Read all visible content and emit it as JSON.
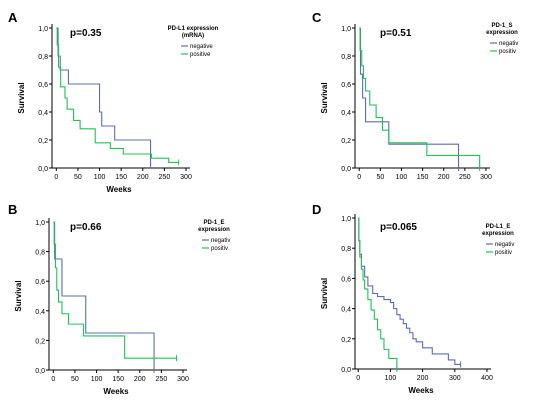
{
  "colors": {
    "negative": "#5b6fae",
    "positive": "#23c05a",
    "axis": "#000000",
    "censor": "#555555"
  },
  "chart_data": [
    {
      "type": "line",
      "panel_label": "A",
      "pvalue_text": "p=0.35",
      "legend_title": [
        "PD-L1 expression",
        "(mRNA)"
      ],
      "xlabel": "Weeks",
      "ylabel": "Survival",
      "xlim": [
        -10,
        300
      ],
      "ylim": [
        0,
        1.0
      ],
      "xticks": [
        0,
        50,
        100,
        150,
        200,
        250,
        300
      ],
      "yticks": [
        0.0,
        0.2,
        0.4,
        0.6,
        0.8,
        1.0
      ],
      "ytick_labels": [
        "0,0",
        "0,2",
        "0,4",
        "0,6",
        "0,8",
        "1,0"
      ],
      "series": [
        {
          "name": "negative",
          "color_key": "negative",
          "step": true,
          "x": [
            0,
            4,
            9,
            28,
            100,
            105,
            135,
            155,
            175,
            215,
            218
          ],
          "y": [
            1.0,
            0.8,
            0.7,
            0.6,
            0.4,
            0.3,
            0.2,
            0.2,
            0.2,
            0.2,
            0.02
          ]
        },
        {
          "name": "positive",
          "color_key": "positive",
          "step": true,
          "x": [
            0,
            2,
            5,
            10,
            20,
            25,
            40,
            55,
            90,
            125,
            155,
            220,
            260,
            283
          ],
          "y": [
            1.0,
            0.88,
            0.72,
            0.58,
            0.5,
            0.42,
            0.34,
            0.28,
            0.18,
            0.14,
            0.1,
            0.07,
            0.04,
            0.04
          ]
        }
      ]
    },
    {
      "type": "line",
      "panel_label": "C",
      "pvalue_text": "p=0.51",
      "legend_title": [
        "PD-1_S",
        "expression"
      ],
      "xlabel": "",
      "ylabel": "Survival",
      "xlim": [
        -10,
        300
      ],
      "ylim": [
        0,
        1.0
      ],
      "xticks": [
        0,
        50,
        100,
        150,
        200,
        250,
        300
      ],
      "yticks": [
        0.0,
        0.2,
        0.4,
        0.6,
        0.8,
        1.0
      ],
      "ytick_labels": [
        "0,0",
        "0,2",
        "0,4",
        "0,6",
        "0,8",
        "1,0"
      ],
      "series": [
        {
          "name": "negativ",
          "color_key": "negative",
          "step": true,
          "x": [
            0,
            3,
            8,
            15,
            70,
            235
          ],
          "y": [
            1.0,
            0.67,
            0.5,
            0.33,
            0.17,
            0.0
          ]
        },
        {
          "name": "positiv",
          "color_key": "positive",
          "step": true,
          "x": [
            0,
            2,
            6,
            10,
            15,
            25,
            40,
            55,
            70,
            160,
            285
          ],
          "y": [
            1.0,
            0.84,
            0.73,
            0.64,
            0.55,
            0.45,
            0.36,
            0.27,
            0.18,
            0.09,
            0.0
          ]
        }
      ]
    },
    {
      "type": "line",
      "panel_label": "B",
      "pvalue_text": "p=0.66",
      "legend_title": [
        "PD-1_E",
        "expression"
      ],
      "xlabel": "Weeks",
      "ylabel": "Survival",
      "xlim": [
        -10,
        300
      ],
      "ylim": [
        0,
        1.0
      ],
      "xticks": [
        0,
        50,
        100,
        150,
        200,
        250,
        300
      ],
      "yticks": [
        0.0,
        0.2,
        0.4,
        0.6,
        0.8,
        1.0
      ],
      "ytick_labels": [
        "0,0",
        "0,2",
        "0,4",
        "0,6",
        "0,8",
        "1,0"
      ],
      "series": [
        {
          "name": "negativ",
          "color_key": "negative",
          "step": true,
          "x": [
            0,
            3,
            20,
            75,
            230,
            233
          ],
          "y": [
            1.0,
            0.75,
            0.5,
            0.25,
            0.25,
            0.0
          ]
        },
        {
          "name": "positiv",
          "color_key": "positive",
          "step": true,
          "x": [
            0,
            2,
            5,
            8,
            12,
            20,
            35,
            70,
            165,
            285
          ],
          "y": [
            1.0,
            0.85,
            0.69,
            0.54,
            0.46,
            0.38,
            0.31,
            0.23,
            0.08,
            0.08
          ]
        }
      ]
    },
    {
      "type": "line",
      "panel_label": "D",
      "pvalue_text": "p=0.065",
      "legend_title": [
        "PD-L1_E",
        "expression"
      ],
      "xlabel": "Weeks",
      "ylabel": "Survival",
      "xlim": [
        -10,
        400
      ],
      "ylim": [
        0,
        1.0
      ],
      "xticks": [
        0,
        100,
        200,
        300,
        400
      ],
      "yticks": [
        0.0,
        0.2,
        0.4,
        0.6,
        0.8,
        1.0
      ],
      "ytick_labels": [
        "0,0",
        "0,2",
        "0,4",
        "0,6",
        "0,8",
        "1,0"
      ],
      "series": [
        {
          "name": "negativ",
          "color_key": "negative",
          "step": true,
          "x": [
            0,
            2,
            5,
            10,
            20,
            30,
            45,
            60,
            80,
            100,
            110,
            120,
            130,
            140,
            150,
            160,
            170,
            180,
            200,
            230,
            280,
            300,
            318
          ],
          "y": [
            1.0,
            0.85,
            0.76,
            0.68,
            0.61,
            0.55,
            0.5,
            0.48,
            0.46,
            0.44,
            0.4,
            0.36,
            0.33,
            0.3,
            0.27,
            0.24,
            0.2,
            0.18,
            0.14,
            0.1,
            0.06,
            0.03,
            0.03
          ]
        },
        {
          "name": "positiv",
          "color_key": "positive",
          "step": true,
          "x": [
            0,
            2,
            5,
            10,
            15,
            20,
            30,
            40,
            50,
            60,
            70,
            80,
            95,
            120
          ],
          "y": [
            1.0,
            0.85,
            0.74,
            0.66,
            0.59,
            0.53,
            0.46,
            0.39,
            0.33,
            0.26,
            0.2,
            0.13,
            0.07,
            0.0
          ]
        }
      ]
    }
  ]
}
